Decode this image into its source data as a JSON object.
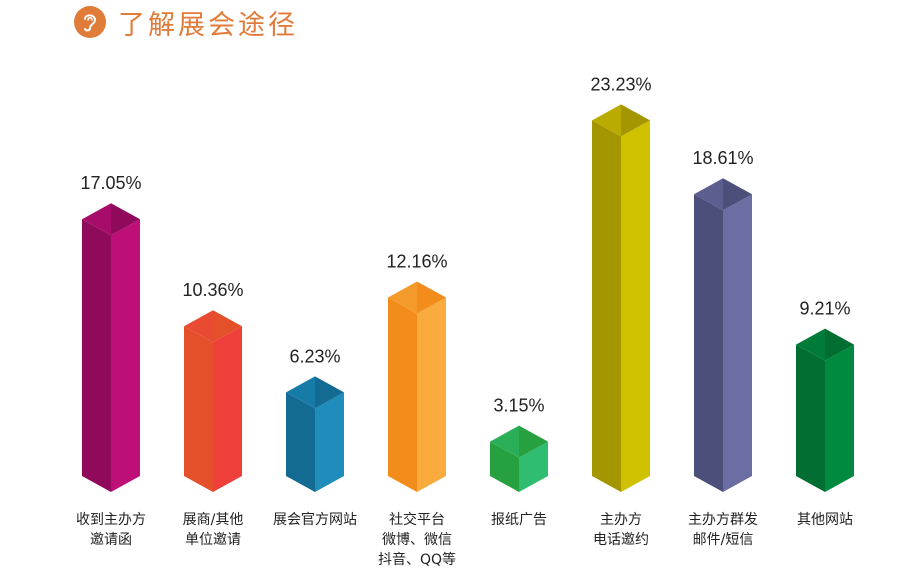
{
  "header": {
    "title": "了解展会途径",
    "icon": "ear-icon"
  },
  "chart_data": {
    "type": "bar",
    "title": "了解展会途径",
    "categories": [
      [
        "收到主办方",
        "邀请函"
      ],
      [
        "展商/其他",
        "单位邀请"
      ],
      [
        "展会官方网站"
      ],
      [
        "社交平台",
        "微博、微信",
        "抖音、QQ等"
      ],
      [
        "报纸广告"
      ],
      [
        "主办方",
        "电话邀约"
      ],
      [
        "主办方群发",
        "邮件/短信"
      ],
      [
        "其他网站"
      ]
    ],
    "values": [
      17.05,
      10.36,
      6.23,
      12.16,
      3.15,
      23.23,
      18.61,
      9.21
    ],
    "value_labels": [
      "17.05%",
      "10.36%",
      "6.23%",
      "12.16%",
      "3.15%",
      "23.23%",
      "18.61%",
      "9.21%"
    ],
    "unit": "%",
    "colors": [
      {
        "left": "#8f0a5a",
        "right": "#be0f79",
        "top": "#a80c6a"
      },
      {
        "left": "#e3502a",
        "right": "#ee3f3a",
        "top": "#e84a32"
      },
      {
        "left": "#136a92",
        "right": "#1f8cbc",
        "top": "#177ba7"
      },
      {
        "left": "#f28c1a",
        "right": "#f9ab3e",
        "top": "#f59b2c"
      },
      {
        "left": "#27a03f",
        "right": "#2fbd72",
        "top": "#2bae58"
      },
      {
        "left": "#a49600",
        "right": "#cfc100",
        "top": "#b9ab00"
      },
      {
        "left": "#4c4f7a",
        "right": "#6a6ea3",
        "top": "#5b5e8e"
      },
      {
        "left": "#006e30",
        "right": "#008a40",
        "top": "#007c38"
      }
    ]
  }
}
